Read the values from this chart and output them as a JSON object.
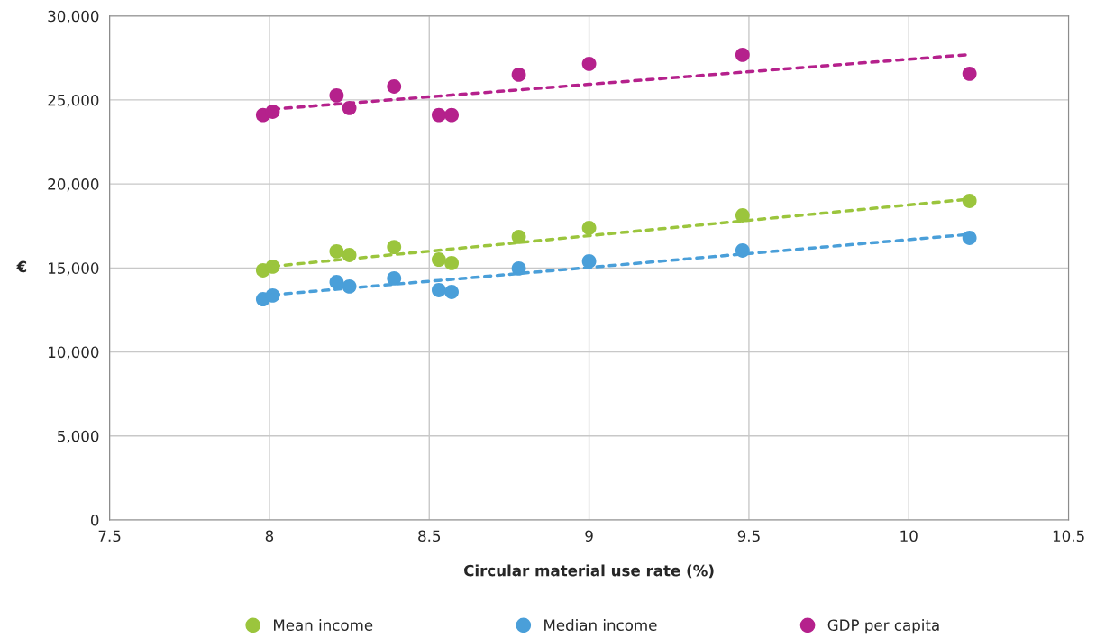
{
  "chart_data": {
    "type": "scatter",
    "xlabel": "Circular material use rate (%)",
    "ylabel": "€",
    "xlim": [
      7.5,
      10.5
    ],
    "xticks": [
      7.5,
      8,
      8.5,
      9,
      9.5,
      10,
      10.5
    ],
    "ylim": [
      0,
      30000
    ],
    "yticks": [
      {
        "value": 0,
        "label": "0"
      },
      {
        "value": 5000,
        "label": "5,000"
      },
      {
        "value": 10000,
        "label": "10,000"
      },
      {
        "value": 15000,
        "label": "15,000"
      },
      {
        "value": 20000,
        "label": "20,000"
      },
      {
        "value": 25000,
        "label": "25,000"
      },
      {
        "value": 30000,
        "label": "30,000"
      }
    ],
    "grid": true,
    "legend": "bottom",
    "marker": "circle",
    "x": [
      7.98,
      8.01,
      8.21,
      8.25,
      8.39,
      8.53,
      8.57,
      8.78,
      9.0,
      9.48,
      10.19
    ],
    "series": [
      {
        "name": "Mean income",
        "color": "#9bc53d",
        "values": [
          14860,
          15080,
          15990,
          15770,
          16250,
          15500,
          15290,
          16850,
          17380,
          18130,
          18990
        ]
      },
      {
        "name": "Median income",
        "color": "#4a9fd9",
        "values": [
          13140,
          13360,
          14160,
          13900,
          14380,
          13680,
          13570,
          14970,
          15400,
          16040,
          16790
        ]
      },
      {
        "name": "GDP per capita",
        "color": "#b5218c",
        "values": [
          24100,
          24300,
          25270,
          24520,
          25800,
          24100,
          24100,
          26500,
          27150,
          27680,
          26560
        ]
      },
      {
        "type": "line",
        "line_style": "dashed",
        "marker": "none",
        "color": "#9bc53d",
        "values": [
          null,
          15100,
          15470,
          15540,
          15800,
          16050,
          16130,
          16510,
          16920,
          17800,
          19100
        ]
      },
      {
        "type": "line",
        "line_style": "dashed",
        "marker": "none",
        "color": "#4a9fd9",
        "values": [
          null,
          13400,
          13730,
          13800,
          14030,
          14260,
          14320,
          14670,
          15030,
          15830,
          17000
        ]
      },
      {
        "type": "line",
        "line_style": "dashed",
        "marker": "none",
        "color": "#b5218c",
        "values": [
          null,
          24450,
          24750,
          24810,
          25020,
          25230,
          25290,
          25600,
          25930,
          26650,
          27700
        ]
      }
    ]
  }
}
